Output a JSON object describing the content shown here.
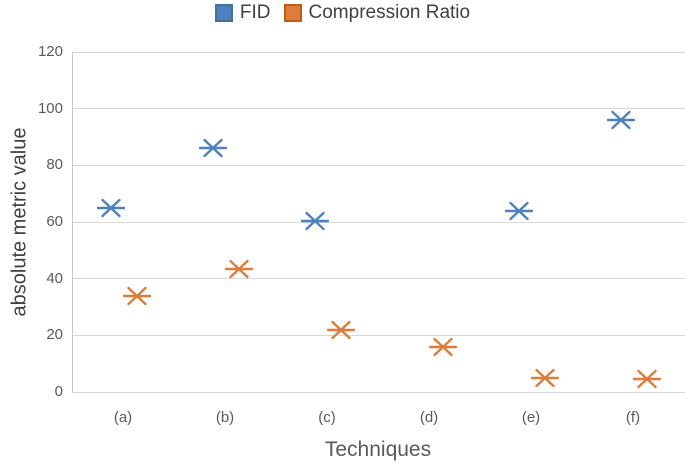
{
  "chart_data": {
    "type": "scatter",
    "title": "",
    "categories": [
      "(a)",
      "(b)",
      "(c)",
      "(d)",
      "(e)",
      "(f)"
    ],
    "series": [
      {
        "name": "FID",
        "color": "#4E81BD",
        "edge_color": "#41719C",
        "marker": "asterisk",
        "values": [
          65,
          86,
          60.5,
          null,
          64,
          96
        ]
      },
      {
        "name": "Compression Ratio",
        "color": "#DC7E3B",
        "edge_color": "#C55A11",
        "marker": "asterisk",
        "values": [
          34,
          43.5,
          22,
          16,
          5,
          4.5
        ]
      }
    ],
    "xlabel": "Techniques",
    "ylabel": "absolute metric value",
    "ylim": [
      0,
      120
    ],
    "yticks": [
      0,
      20,
      40,
      60,
      80,
      100,
      120
    ],
    "grid": true,
    "legend_position": "top",
    "gridline_color": "#D9D9D9",
    "axis_line_color": "#C9C9C9",
    "tick_text_color": "#595959",
    "legend_text_color": "#404040"
  }
}
